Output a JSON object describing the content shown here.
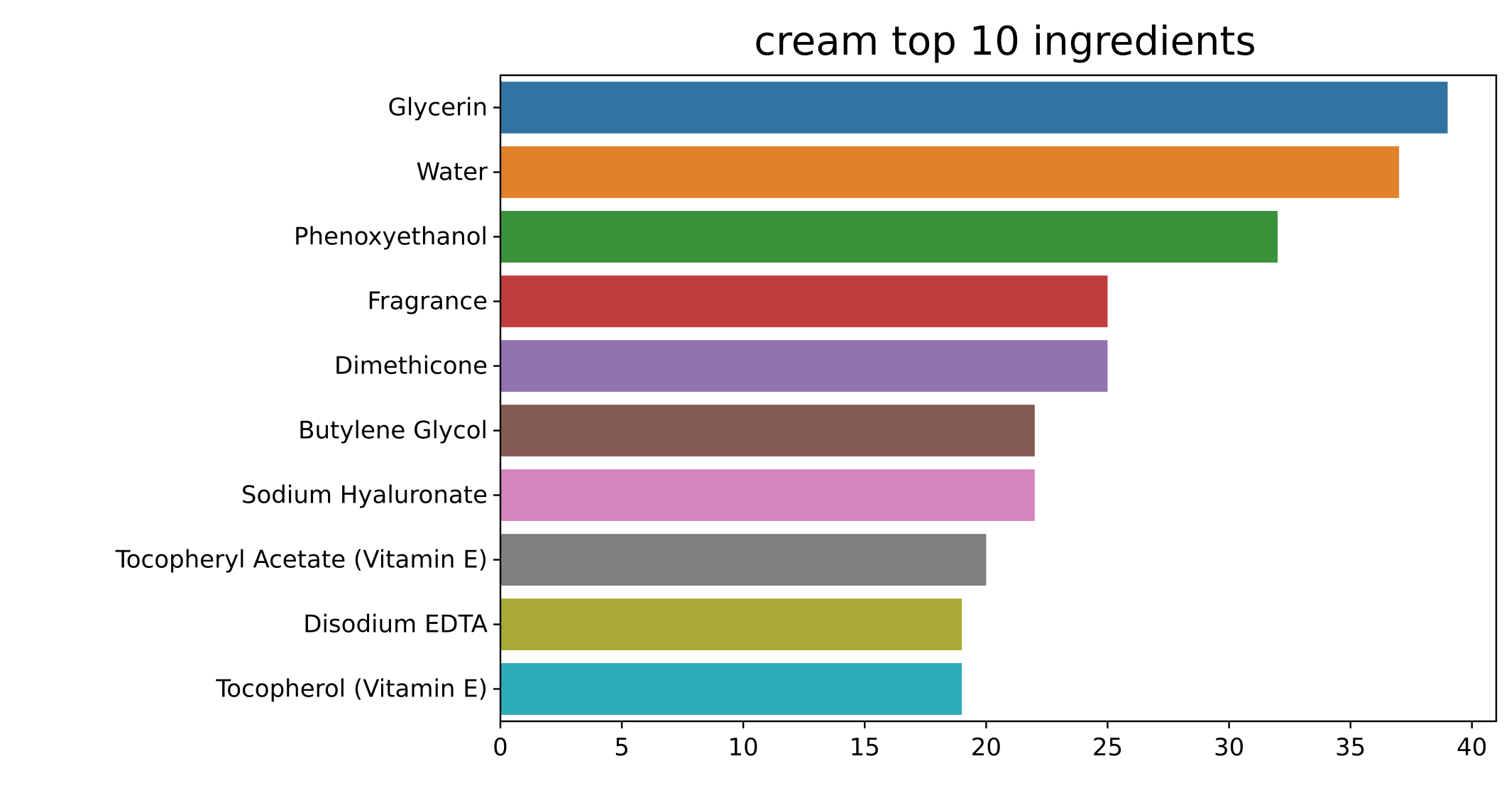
{
  "chart_data": {
    "type": "bar",
    "orientation": "horizontal",
    "title": "cream top 10 ingredients",
    "xlabel": "",
    "ylabel": "",
    "xlim": [
      0,
      41
    ],
    "xticks": [
      0,
      5,
      10,
      15,
      20,
      25,
      30,
      35,
      40
    ],
    "grid": false,
    "categories": [
      "Glycerin",
      "Water",
      "Phenoxyethanol",
      "Fragrance",
      "Dimethicone",
      "Butylene Glycol",
      "Sodium Hyaluronate",
      "Tocopheryl Acetate (Vitamin E)",
      "Disodium EDTA",
      "Tocopherol (Vitamin E)"
    ],
    "values": [
      39,
      37,
      32,
      25,
      25,
      22,
      22,
      20,
      19,
      19
    ],
    "colors": [
      "#3274a1",
      "#e1812c",
      "#3a923a",
      "#c03d3e",
      "#9372b2",
      "#845b53",
      "#d684bd",
      "#7f7f7f",
      "#a9aa35",
      "#2eabb8"
    ]
  }
}
